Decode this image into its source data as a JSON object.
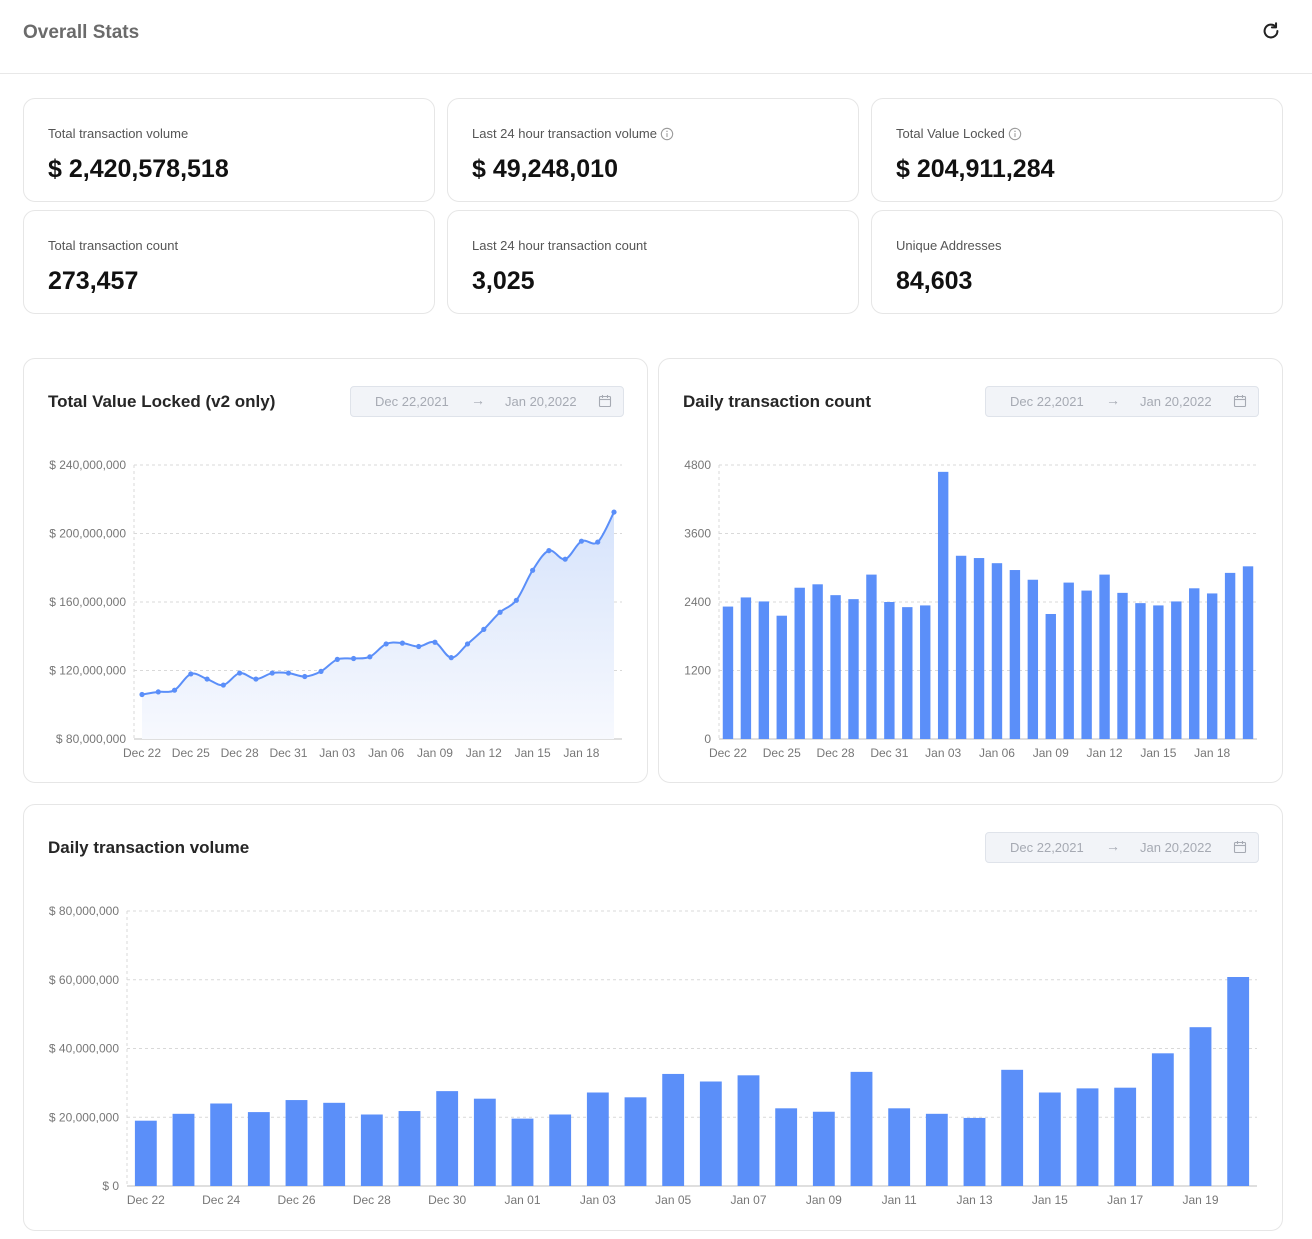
{
  "header": {
    "title": "Overall Stats",
    "refresh_icon": "refresh-icon"
  },
  "stats": [
    {
      "label": "Total transaction volume",
      "value": "$ 2,420,578,518",
      "info": false
    },
    {
      "label": "Last 24 hour transaction volume",
      "value": "$ 49,248,010",
      "info": true
    },
    {
      "label": "Total Value Locked",
      "value": "$ 204,911,284",
      "info": true
    },
    {
      "label": "Total transaction count",
      "value": "273,457",
      "info": false
    },
    {
      "label": "Last 24 hour transaction count",
      "value": "3,025",
      "info": false
    },
    {
      "label": "Unique Addresses",
      "value": "84,603",
      "info": false
    }
  ],
  "date_range": {
    "start": "Dec 22,2021",
    "arrow": "→",
    "end": "Jan 20,2022"
  },
  "chart_data": [
    {
      "type": "area",
      "title": "Total Value Locked (v2 only)",
      "xlabel": "",
      "ylabel": "",
      "ylim": [
        80000000,
        240000000
      ],
      "y_ticks": [
        80000000,
        120000000,
        160000000,
        200000000,
        240000000
      ],
      "y_tick_labels": [
        "$ 80,000,000",
        "$ 120,000,000",
        "$ 160,000,000",
        "$ 200,000,000",
        "$ 240,000,000"
      ],
      "x_tick_labels": [
        "Dec 22",
        "Dec 25",
        "Dec 28",
        "Dec 31",
        "Jan 03",
        "Jan 06",
        "Jan 09",
        "Jan 12",
        "Jan 15",
        "Jan 18"
      ],
      "x_tick_every": 3,
      "grid": true,
      "values": [
        106000000,
        107500000,
        108500000,
        118000000,
        115000000,
        111500000,
        118500000,
        115000000,
        118500000,
        118500000,
        116500000,
        119500000,
        126500000,
        127000000,
        128000000,
        135500000,
        136000000,
        134000000,
        136500000,
        127500000,
        135500000,
        144000000,
        154000000,
        161000000,
        178500000,
        190000000,
        185000000,
        195500000,
        195000000,
        212500000
      ]
    },
    {
      "type": "bar",
      "title": "Daily transaction count",
      "xlabel": "",
      "ylabel": "",
      "ylim": [
        0,
        4800
      ],
      "y_ticks": [
        0,
        1200,
        2400,
        3600,
        4800
      ],
      "y_tick_labels": [
        "0",
        "1200",
        "2400",
        "3600",
        "4800"
      ],
      "x_tick_labels": [
        "Dec 22",
        "Dec 25",
        "Dec 28",
        "Dec 31",
        "Jan 03",
        "Jan 06",
        "Jan 09",
        "Jan 12",
        "Jan 15",
        "Jan 18"
      ],
      "x_tick_every": 3,
      "grid": true,
      "values": [
        2320,
        2480,
        2410,
        2160,
        2650,
        2710,
        2520,
        2450,
        2880,
        2400,
        2310,
        2340,
        4680,
        3210,
        3170,
        3080,
        2960,
        2790,
        2190,
        2740,
        2600,
        2880,
        2560,
        2380,
        2340,
        2410,
        2640,
        2550,
        2910,
        3025
      ]
    },
    {
      "type": "bar",
      "title": "Daily transaction volume",
      "xlabel": "",
      "ylabel": "",
      "ylim": [
        0,
        80000000
      ],
      "y_ticks": [
        0,
        20000000,
        40000000,
        60000000,
        80000000
      ],
      "y_tick_labels": [
        "$ 0",
        "$ 20,000,000",
        "$ 40,000,000",
        "$ 60,000,000",
        "$ 80,000,000"
      ],
      "x_tick_labels": [
        "Dec 22",
        "Dec 24",
        "Dec 26",
        "Dec 28",
        "Dec 30",
        "Jan 01",
        "Jan 03",
        "Jan 05",
        "Jan 07",
        "Jan 09",
        "Jan 11",
        "Jan 13",
        "Jan 15",
        "Jan 17",
        "Jan 19"
      ],
      "x_tick_every": 2,
      "grid": true,
      "values": [
        19000000,
        21000000,
        24000000,
        21500000,
        25000000,
        24200000,
        20800000,
        21800000,
        27600000,
        25400000,
        19600000,
        20800000,
        27200000,
        25800000,
        32600000,
        30400000,
        32200000,
        22600000,
        21600000,
        33200000,
        22600000,
        21000000,
        19800000,
        33800000,
        27200000,
        28400000,
        28600000,
        38600000,
        46200000,
        60800000
      ]
    }
  ],
  "colors": {
    "bar": "#5b8ff9",
    "line": "#5b8ff9",
    "area_top": "#d6e3fb",
    "area_bottom": "#f7f9fe",
    "grid": "#d9d9d9"
  }
}
